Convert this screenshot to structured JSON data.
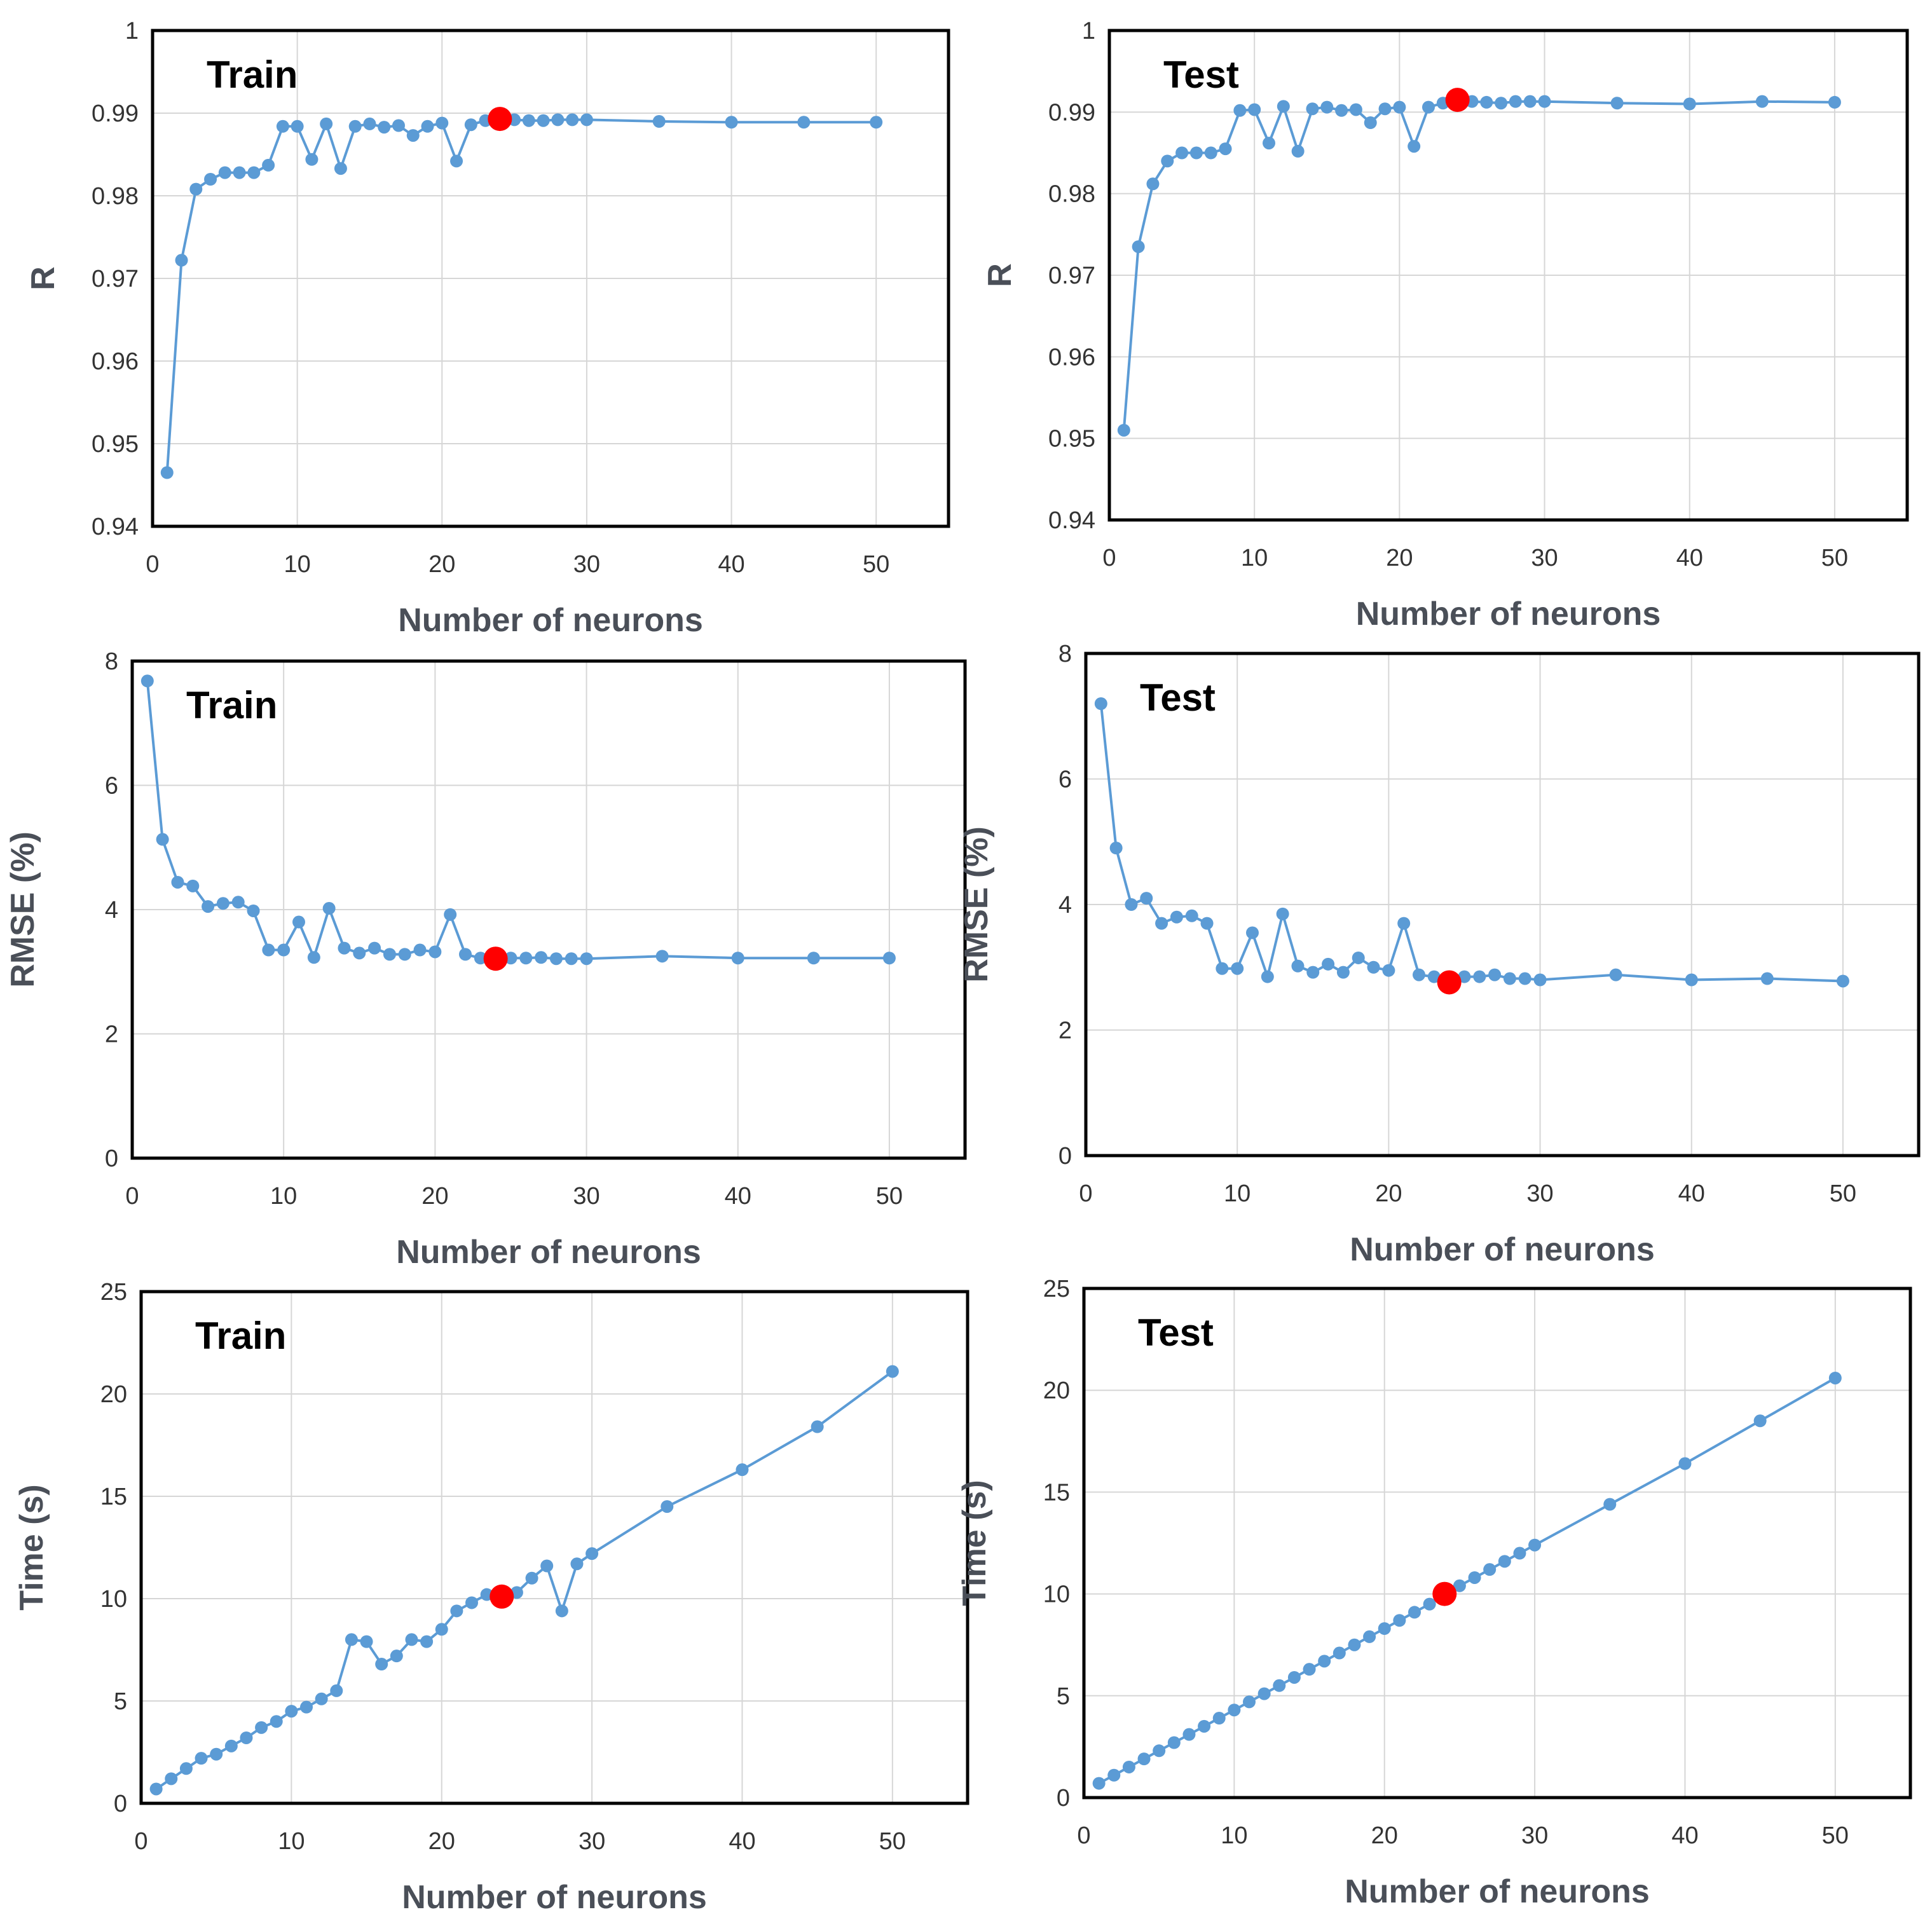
{
  "chart_data": [
    {
      "id": "r-train",
      "type": "line",
      "title": "Train",
      "xlabel": "Number of neurons",
      "ylabel": "R",
      "xlim": [
        0,
        55
      ],
      "ylim": [
        0.94,
        1
      ],
      "xticks": [
        0,
        10,
        20,
        30,
        40,
        50
      ],
      "xtick_labels": [
        "0",
        "10",
        "20",
        "30",
        "40",
        "50"
      ],
      "yticks": [
        0.94,
        0.95,
        0.96,
        0.97,
        0.98,
        0.99,
        1
      ],
      "ytick_labels": [
        "0.94",
        "0.95",
        "0.96",
        "0.97",
        "0.98",
        "0.99",
        "1"
      ],
      "x": [
        1,
        2,
        3,
        4,
        5,
        6,
        7,
        8,
        9,
        10,
        11,
        12,
        13,
        14,
        15,
        16,
        17,
        18,
        19,
        20,
        21,
        22,
        23,
        24,
        25,
        26,
        27,
        28,
        29,
        30,
        35,
        40,
        45,
        50
      ],
      "y": [
        0.9465,
        0.9722,
        0.9808,
        0.982,
        0.9828,
        0.9828,
        0.9828,
        0.9837,
        0.9884,
        0.9884,
        0.9844,
        0.9887,
        0.9833,
        0.9884,
        0.9887,
        0.9883,
        0.9885,
        0.9873,
        0.9884,
        0.9888,
        0.9842,
        0.9886,
        0.9891,
        0.9893,
        0.9892,
        0.9891,
        0.9891,
        0.9892,
        0.9892,
        0.9892,
        0.989,
        0.9889,
        0.9889,
        0.9889
      ],
      "highlight": {
        "x": 24,
        "y": 0.9893
      }
    },
    {
      "id": "r-test",
      "type": "line",
      "title": "Test",
      "xlabel": "Number of neurons",
      "ylabel": "R",
      "xlim": [
        0,
        55
      ],
      "ylim": [
        0.94,
        1
      ],
      "xticks": [
        0,
        10,
        20,
        30,
        40,
        50
      ],
      "xtick_labels": [
        "0",
        "10",
        "20",
        "30",
        "40",
        "50"
      ],
      "yticks": [
        0.94,
        0.95,
        0.96,
        0.97,
        0.98,
        0.99,
        1
      ],
      "ytick_labels": [
        "0.94",
        "0.95",
        "0.96",
        "0.97",
        "0.98",
        "0.99",
        "1"
      ],
      "x": [
        1,
        2,
        3,
        4,
        5,
        6,
        7,
        8,
        9,
        10,
        11,
        12,
        13,
        14,
        15,
        16,
        17,
        18,
        19,
        20,
        21,
        22,
        23,
        24,
        25,
        26,
        27,
        28,
        29,
        30,
        35,
        40,
        45,
        50
      ],
      "y": [
        0.951,
        0.9735,
        0.9812,
        0.984,
        0.985,
        0.985,
        0.985,
        0.9855,
        0.9902,
        0.9903,
        0.9862,
        0.9907,
        0.9852,
        0.9904,
        0.9906,
        0.9902,
        0.9903,
        0.9887,
        0.9904,
        0.9906,
        0.9858,
        0.9906,
        0.9911,
        0.9915,
        0.9913,
        0.9912,
        0.9911,
        0.9913,
        0.9913,
        0.9913,
        0.9911,
        0.991,
        0.9913,
        0.9912
      ],
      "highlight": {
        "x": 24,
        "y": 0.9915
      }
    },
    {
      "id": "rmse-train",
      "type": "line",
      "title": "Train",
      "xlabel": "Number of neurons",
      "ylabel": "RMSE (%)",
      "xlim": [
        0,
        55
      ],
      "ylim": [
        0,
        8
      ],
      "xticks": [
        0,
        10,
        20,
        30,
        40,
        50
      ],
      "xtick_labels": [
        "0",
        "10",
        "20",
        "30",
        "40",
        "50"
      ],
      "yticks": [
        0,
        2,
        4,
        6,
        8
      ],
      "ytick_labels": [
        "0",
        "2",
        "4",
        "6",
        "8"
      ],
      "x": [
        1,
        2,
        3,
        4,
        5,
        6,
        7,
        8,
        9,
        10,
        11,
        12,
        13,
        14,
        15,
        16,
        17,
        18,
        19,
        20,
        21,
        22,
        23,
        24,
        25,
        26,
        27,
        28,
        29,
        30,
        35,
        40,
        45,
        50
      ],
      "y": [
        7.68,
        5.13,
        4.44,
        4.38,
        4.05,
        4.1,
        4.12,
        3.98,
        3.35,
        3.35,
        3.8,
        3.23,
        4.02,
        3.38,
        3.3,
        3.38,
        3.28,
        3.28,
        3.35,
        3.32,
        3.92,
        3.28,
        3.22,
        3.21,
        3.22,
        3.22,
        3.23,
        3.21,
        3.21,
        3.21,
        3.25,
        3.22,
        3.22,
        3.22
      ],
      "highlight": {
        "x": 24,
        "y": 3.21
      }
    },
    {
      "id": "rmse-test",
      "type": "line",
      "title": "Test",
      "xlabel": "Number of neurons",
      "ylabel": "RMSE (%)",
      "xlim": [
        0,
        55
      ],
      "ylim": [
        0,
        8
      ],
      "xticks": [
        0,
        10,
        20,
        30,
        40,
        50
      ],
      "xtick_labels": [
        "0",
        "10",
        "20",
        "30",
        "40",
        "50"
      ],
      "yticks": [
        0,
        2,
        4,
        6,
        8
      ],
      "ytick_labels": [
        "0",
        "2",
        "4",
        "6",
        "8"
      ],
      "x": [
        1,
        2,
        3,
        4,
        5,
        6,
        7,
        8,
        9,
        10,
        11,
        12,
        13,
        14,
        15,
        16,
        17,
        18,
        19,
        20,
        21,
        22,
        23,
        24,
        25,
        26,
        27,
        28,
        29,
        30,
        35,
        40,
        45,
        50
      ],
      "y": [
        7.2,
        4.9,
        4.0,
        4.1,
        3.7,
        3.8,
        3.82,
        3.7,
        2.98,
        2.98,
        3.55,
        2.85,
        3.85,
        3.02,
        2.92,
        3.05,
        2.92,
        3.15,
        3.0,
        2.95,
        3.7,
        2.88,
        2.85,
        2.76,
        2.85,
        2.85,
        2.88,
        2.82,
        2.82,
        2.8,
        2.88,
        2.8,
        2.82,
        2.78
      ],
      "highlight": {
        "x": 24,
        "y": 2.76
      }
    },
    {
      "id": "time-train",
      "type": "line",
      "title": "Train",
      "xlabel": "Number of neurons",
      "ylabel": "Time (s)",
      "xlim": [
        0,
        55
      ],
      "ylim": [
        0,
        25
      ],
      "xticks": [
        0,
        10,
        20,
        30,
        40,
        50
      ],
      "xtick_labels": [
        "0",
        "10",
        "20",
        "30",
        "40",
        "50"
      ],
      "yticks": [
        0,
        5,
        10,
        15,
        20,
        25
      ],
      "ytick_labels": [
        "0",
        "5",
        "10",
        "15",
        "20",
        "25"
      ],
      "x": [
        1,
        2,
        3,
        4,
        5,
        6,
        7,
        8,
        9,
        10,
        11,
        12,
        13,
        14,
        15,
        16,
        17,
        18,
        19,
        20,
        21,
        22,
        23,
        24,
        25,
        26,
        27,
        28,
        29,
        30,
        35,
        40,
        45,
        50
      ],
      "y": [
        0.7,
        1.2,
        1.7,
        2.2,
        2.4,
        2.8,
        3.2,
        3.7,
        4.0,
        4.5,
        4.7,
        5.1,
        5.5,
        8.0,
        7.9,
        6.8,
        7.2,
        8.0,
        7.9,
        8.5,
        9.4,
        9.8,
        10.2,
        10.1,
        10.3,
        11.0,
        11.6,
        9.4,
        11.7,
        12.2,
        14.5,
        16.3,
        18.4,
        21.1
      ],
      "highlight": {
        "x": 24,
        "y": 10.1
      }
    },
    {
      "id": "time-test",
      "type": "line",
      "title": "Test",
      "xlabel": "Number of neurons",
      "ylabel": "Time (s)",
      "xlim": [
        0,
        55
      ],
      "ylim": [
        0,
        25
      ],
      "xticks": [
        0,
        10,
        20,
        30,
        40,
        50
      ],
      "xtick_labels": [
        "0",
        "10",
        "20",
        "30",
        "40",
        "50"
      ],
      "yticks": [
        0,
        5,
        10,
        15,
        20,
        25
      ],
      "ytick_labels": [
        "0",
        "5",
        "10",
        "15",
        "20",
        "25"
      ],
      "x": [
        1,
        2,
        3,
        4,
        5,
        6,
        7,
        8,
        9,
        10,
        11,
        12,
        13,
        14,
        15,
        16,
        17,
        18,
        19,
        20,
        21,
        22,
        23,
        24,
        25,
        26,
        27,
        28,
        29,
        30,
        35,
        40,
        45,
        50
      ],
      "y": [
        0.7,
        1.1,
        1.5,
        1.9,
        2.3,
        2.7,
        3.1,
        3.5,
        3.9,
        4.3,
        4.7,
        5.1,
        5.5,
        5.9,
        6.3,
        6.7,
        7.1,
        7.5,
        7.9,
        8.3,
        8.7,
        9.1,
        9.5,
        10.0,
        10.4,
        10.8,
        11.2,
        11.6,
        12.0,
        12.4,
        14.4,
        16.4,
        18.5,
        20.6
      ],
      "highlight": {
        "x": 24,
        "y": 10.0
      }
    }
  ]
}
